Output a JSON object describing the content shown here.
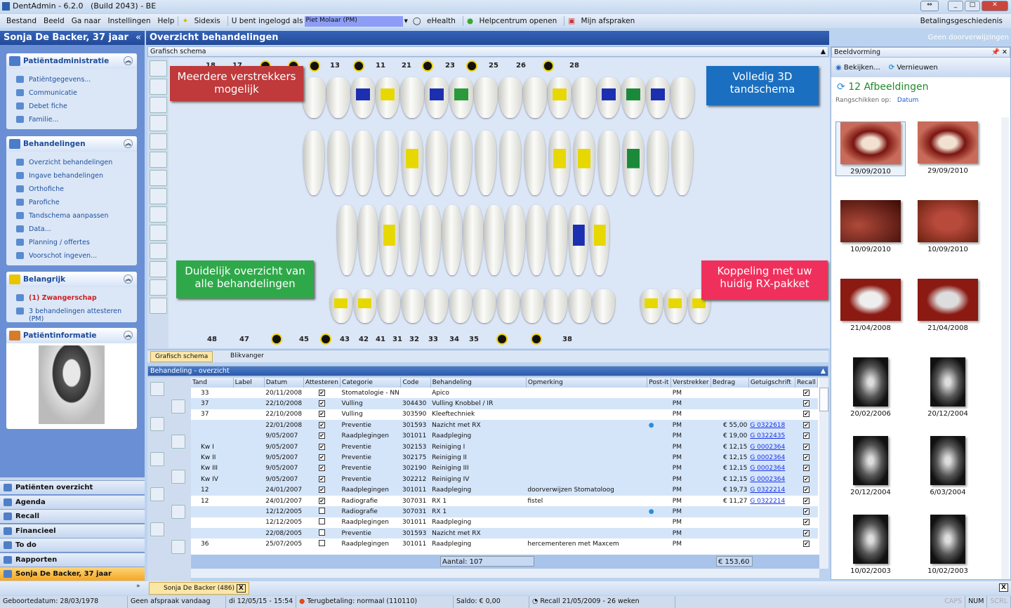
{
  "app": {
    "title": "DentAdmin - 6.2.0",
    "build": "(Build 2043) - BE"
  },
  "menu": {
    "items": [
      "Bestand",
      "Beeld",
      "Ga naar",
      "Instellingen",
      "Help"
    ],
    "sidexis": "Sidexis",
    "logged_in_label": "U bent ingelogd als",
    "user": "Piet Molaar (PM)",
    "ehealth": "eHealth",
    "help": "Helpcentrum openen",
    "appointments": "Mijn afspraken",
    "payment_history": "Betalingsgeschiedenis"
  },
  "left": {
    "patient_header": "Sonja De Backer, 37 jaar",
    "groups": [
      {
        "title": "Patiëntadministratie",
        "items": [
          "Patiëntgegevens...",
          "Communicatie",
          "Debet fiche",
          "Familie..."
        ]
      },
      {
        "title": "Behandelingen",
        "items": [
          "Overzicht behandelingen",
          "Ingave behandelingen",
          "Orthofiche",
          "Parofiche",
          "Tandschema aanpassen",
          "Data...",
          "Planning / offertes",
          "Voorschot ingeven..."
        ]
      },
      {
        "title": "Belangrijk",
        "items": [
          "(1) Zwangerschap",
          "3 behandelingen attesteren (PM)"
        ]
      },
      {
        "title": "Patiëntinformatie",
        "items": []
      }
    ],
    "nav": [
      "Patiënten overzicht",
      "Agenda",
      "Recall",
      "Financieel",
      "To do",
      "Rapporten",
      "Sonja De Backer, 37 jaar"
    ]
  },
  "main": {
    "title": "Overzicht behandelingen",
    "referrals": "Geen doorverwijzingen",
    "schema_title": "Grafisch schema",
    "upper_numbers": [
      "18",
      "17",
      "☢",
      "☢",
      "☢",
      "13",
      "☢",
      "11",
      "21",
      "☢",
      "23",
      "☢",
      "25",
      "26",
      "☢",
      "28"
    ],
    "lower_numbers": [
      "48",
      "47",
      "☢",
      "45",
      "☢",
      "43",
      "42",
      "41",
      "31",
      "32",
      "33",
      "34",
      "35",
      "☢",
      "☢",
      "38"
    ],
    "callouts": [
      "Meerdere verstrekkers mogelijk",
      "Volledig 3D tandschema",
      "Duidelijk overzicht van alle behandelingen",
      "Koppeling met uw huidig RX-pakket"
    ],
    "callout_colors": [
      "#c0393b",
      "#1b6fc0",
      "#2fa84a",
      "#f0305c"
    ],
    "tabs": [
      "Grafisch schema",
      "Blikvanger"
    ],
    "table_title": "Behandeling - overzicht",
    "columns": [
      "Tand",
      "Label",
      "Datum",
      "Attesteren",
      "Categorie",
      "Code",
      "Behandeling",
      "Opmerking",
      "Post-it",
      "Verstrekker",
      "Bedrag",
      "Getuigschrift",
      "Recall"
    ],
    "rows": [
      [
        "33",
        "",
        "20/11/2008",
        true,
        "Stomatologie - NN",
        "",
        "Apico",
        "",
        false,
        "PM",
        "",
        "",
        true
      ],
      [
        "37",
        "",
        "22/10/2008",
        true,
        "Vulling",
        "304430",
        "Vulling Knobbel / IR",
        "",
        false,
        "PM",
        "",
        "",
        true
      ],
      [
        "37",
        "",
        "22/10/2008",
        true,
        "Vulling",
        "303590",
        "Kleeftechniek",
        "",
        false,
        "PM",
        "",
        "",
        true
      ],
      [
        "",
        "",
        "22/01/2008",
        true,
        "Preventie",
        "301593",
        "Nazicht met RX",
        "",
        true,
        "PM",
        "€ 55,00",
        "G 0322618",
        true
      ],
      [
        "",
        "",
        "9/05/2007",
        true,
        "Raadplegingen",
        "301011",
        "Raadpleging",
        "",
        false,
        "PM",
        "€ 19,00",
        "G 0322435",
        true
      ],
      [
        "Kw I",
        "",
        "9/05/2007",
        true,
        "Preventie",
        "302153",
        "Reiniging I",
        "",
        false,
        "PM",
        "€ 12,15",
        "G 0002364",
        true
      ],
      [
        "Kw II",
        "",
        "9/05/2007",
        true,
        "Preventie",
        "302175",
        "Reiniging II",
        "",
        false,
        "PM",
        "€ 12,15",
        "G 0002364",
        true
      ],
      [
        "Kw III",
        "",
        "9/05/2007",
        true,
        "Preventie",
        "302190",
        "Reiniging III",
        "",
        false,
        "PM",
        "€ 12,15",
        "G 0002364",
        true
      ],
      [
        "Kw IV",
        "",
        "9/05/2007",
        true,
        "Preventie",
        "302212",
        "Reiniging IV",
        "",
        false,
        "PM",
        "€ 12,15",
        "G 0002364",
        true
      ],
      [
        "12",
        "",
        "24/01/2007",
        true,
        "Raadplegingen",
        "301011",
        "Raadpleging",
        "doorverwijzen Stomatoloog",
        false,
        "PM",
        "€ 19,73",
        "G 0322214",
        true
      ],
      [
        "12",
        "",
        "24/01/2007",
        true,
        "Radiografie",
        "307031",
        "RX 1",
        "fistel",
        false,
        "PM",
        "€ 11,27",
        "G 0322214",
        true
      ],
      [
        "",
        "",
        "12/12/2005",
        false,
        "Radiografie",
        "307031",
        "RX 1",
        "",
        true,
        "PM",
        "",
        "",
        true
      ],
      [
        "",
        "",
        "12/12/2005",
        false,
        "Raadplegingen",
        "301011",
        "Raadpleging",
        "",
        false,
        "PM",
        "",
        "",
        true
      ],
      [
        "",
        "",
        "22/08/2005",
        false,
        "Preventie",
        "301593",
        "Nazicht met RX",
        "",
        false,
        "PM",
        "",
        "",
        true
      ],
      [
        "36",
        "",
        "25/07/2005",
        false,
        "Raadplegingen",
        "301011",
        "Raadpleging",
        "hercementeren met Maxcem",
        false,
        "PM",
        "",
        "",
        true
      ]
    ],
    "count": "Aantal: 107",
    "total": "€ 153,60"
  },
  "imaging": {
    "title": "Beeldvorming",
    "view": "Bekijken...",
    "refresh": "Vernieuwen",
    "count": "12 Afbeeldingen",
    "sort_label": "Rangschikken op:",
    "sort_value": "Datum",
    "images": [
      "29/09/2010",
      "29/09/2010",
      "10/09/2010",
      "10/09/2010",
      "21/04/2008",
      "21/04/2008",
      "20/02/2006",
      "20/12/2004",
      "20/12/2004",
      "6/03/2004",
      "10/02/2003",
      "10/02/2003"
    ]
  },
  "bottom_tab": "Sonja De Backer (486)",
  "status": [
    "Geboortedatum: 28/03/1978",
    "Geen afspraak vandaag",
    "di 12/05/15 - 15:54",
    "Terugbetaling: normaal (110110)",
    "Saldo: € 0,00",
    "Recall 21/05/2009 - 26 weken",
    "CAPS",
    "NUM",
    "SCRL"
  ]
}
